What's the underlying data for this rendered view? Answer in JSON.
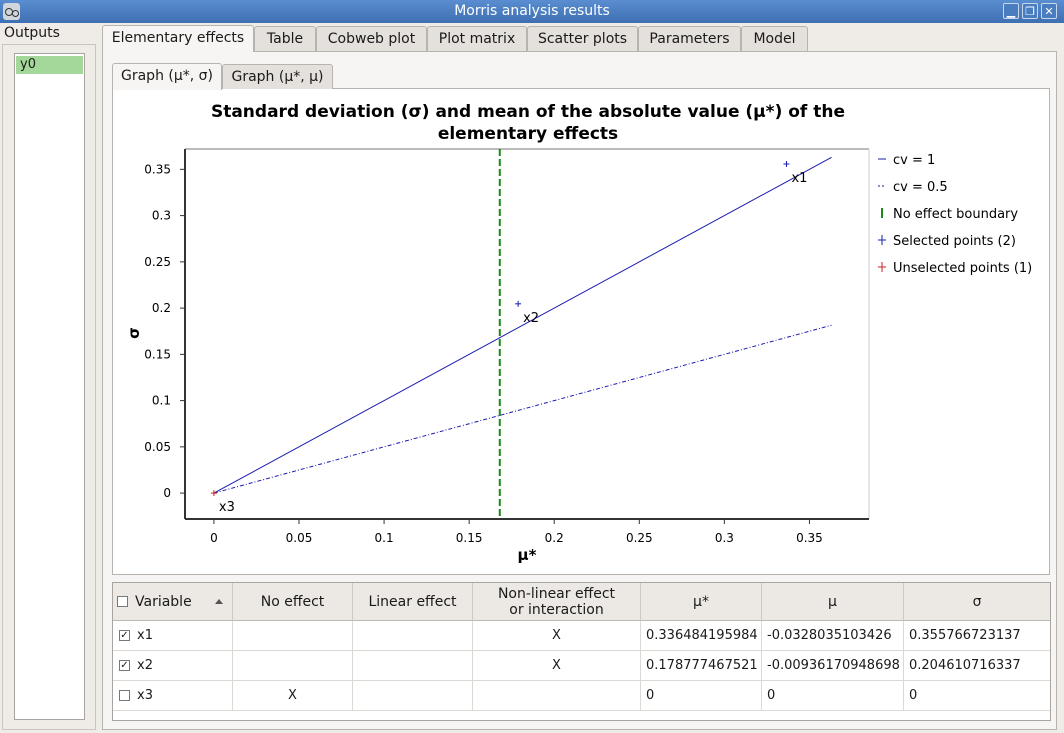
{
  "window": {
    "title": "Morris analysis results",
    "minimize": "▁",
    "restore": "❐",
    "close": "✕"
  },
  "outputs": {
    "label": "Outputs",
    "items": [
      "y0"
    ]
  },
  "tabs": [
    "Elementary effects",
    "Table",
    "Cobweb plot",
    "Plot matrix",
    "Scatter plots",
    "Parameters",
    "Model"
  ],
  "subtabs": [
    "Graph (μ*, σ)",
    "Graph (μ*, μ)"
  ],
  "chart_data": {
    "type": "scatter",
    "title": [
      "Standard deviation (σ) and mean of the absolute value (μ*) of the",
      "elementary effects"
    ],
    "xlabel": "μ*",
    "ylabel": "σ",
    "xlim": [
      -0.017,
      0.385
    ],
    "ylim": [
      -0.028,
      0.372
    ],
    "xticks": [
      "0",
      "0.05",
      "0.1",
      "0.15",
      "0.2",
      "0.25",
      "0.3",
      "0.35"
    ],
    "yticks": [
      "0",
      "0.05",
      "0.1",
      "0.15",
      "0.2",
      "0.25",
      "0.3",
      "0.35"
    ],
    "lines": [
      {
        "name": "cv = 1",
        "slope": 1,
        "x_end": 0.363,
        "color": "#1b1bb0",
        "style": "solid"
      },
      {
        "name": "cv = 0.5",
        "slope": 0.5,
        "x_end": 0.363,
        "color": "#1b1bb0",
        "style": "dashdot"
      }
    ],
    "boundary": {
      "name": "No effect boundary",
      "x": 0.168,
      "color": "#1a8a1a"
    },
    "points": [
      {
        "label": "x1",
        "x": 0.336484195984,
        "y": 0.355766723137,
        "selected": true
      },
      {
        "label": "x2",
        "x": 0.178777467521,
        "y": 0.204610716337,
        "selected": true
      },
      {
        "label": "x3",
        "x": 0,
        "y": 0,
        "selected": false
      }
    ],
    "legend": [
      "cv = 1",
      "cv = 0.5",
      "No effect boundary",
      "Selected points (2)",
      "Unselected points (1)"
    ],
    "legend_position": "right",
    "colors": {
      "selected": "#1b1bb0",
      "unselected": "#d02020"
    }
  },
  "table": {
    "headers": [
      "Variable",
      "No effect",
      "Linear effect",
      "Non-linear effect or interaction",
      "μ*",
      "μ",
      "σ"
    ],
    "rows": [
      {
        "checked": "✓",
        "variable": "x1",
        "no_effect": "",
        "linear": "",
        "nonlinear": "X",
        "mustar": "0.336484195984",
        "mu": "-0.0328035103426",
        "sigma": "0.355766723137"
      },
      {
        "checked": "✓",
        "variable": "x2",
        "no_effect": "",
        "linear": "",
        "nonlinear": "X",
        "mustar": "0.178777467521",
        "mu": "-0.00936170948698",
        "sigma": "0.204610716337"
      },
      {
        "checked": "",
        "variable": "x3",
        "no_effect": "X",
        "linear": "",
        "nonlinear": "",
        "mustar": "0",
        "mu": "0",
        "sigma": "0"
      }
    ]
  }
}
